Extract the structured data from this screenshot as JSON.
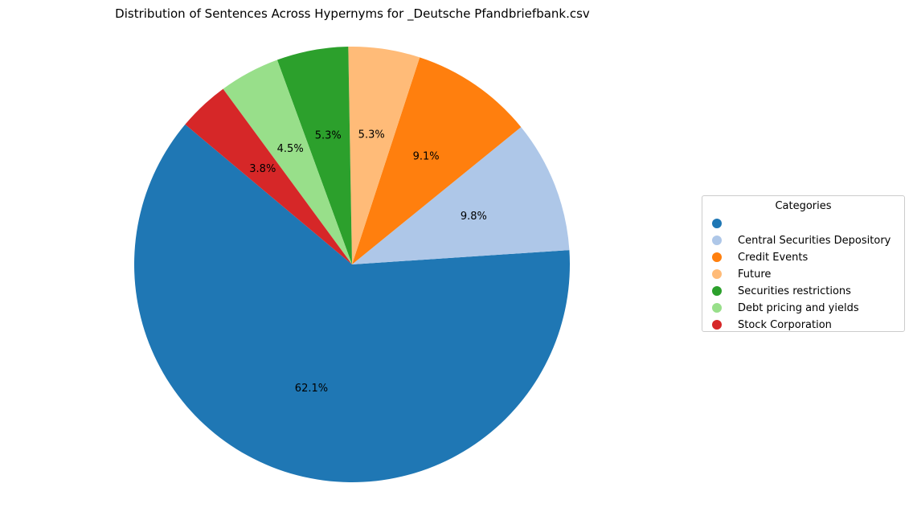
{
  "chart_data": {
    "type": "pie",
    "title": "Distribution of Sentences Across Hypernyms for _Deutsche Pfandbriefbank.csv",
    "slices": [
      {
        "label": "",
        "value": 62.1,
        "pct_label": "62.1%",
        "color": "#1f77b4"
      },
      {
        "label": "Central Securities Depository",
        "value": 9.8,
        "pct_label": "9.8%",
        "color": "#aec7e8"
      },
      {
        "label": "Credit Events",
        "value": 9.1,
        "pct_label": "9.1%",
        "color": "#ff7f0e"
      },
      {
        "label": "Future",
        "value": 5.3,
        "pct_label": "5.3%",
        "color": "#ffbb78"
      },
      {
        "label": "Securities restrictions",
        "value": 5.3,
        "pct_label": "5.3%",
        "color": "#2ca02c"
      },
      {
        "label": "Debt pricing and yields",
        "value": 4.5,
        "pct_label": "4.5%",
        "color": "#98df8a"
      },
      {
        "label": "Stock Corporation",
        "value": 3.8,
        "pct_label": "3.8%",
        "color": "#d62728"
      }
    ],
    "start_angle_deg": 140,
    "direction": "counterclockwise",
    "legend": {
      "title": "Categories",
      "placement": "center-right"
    }
  }
}
